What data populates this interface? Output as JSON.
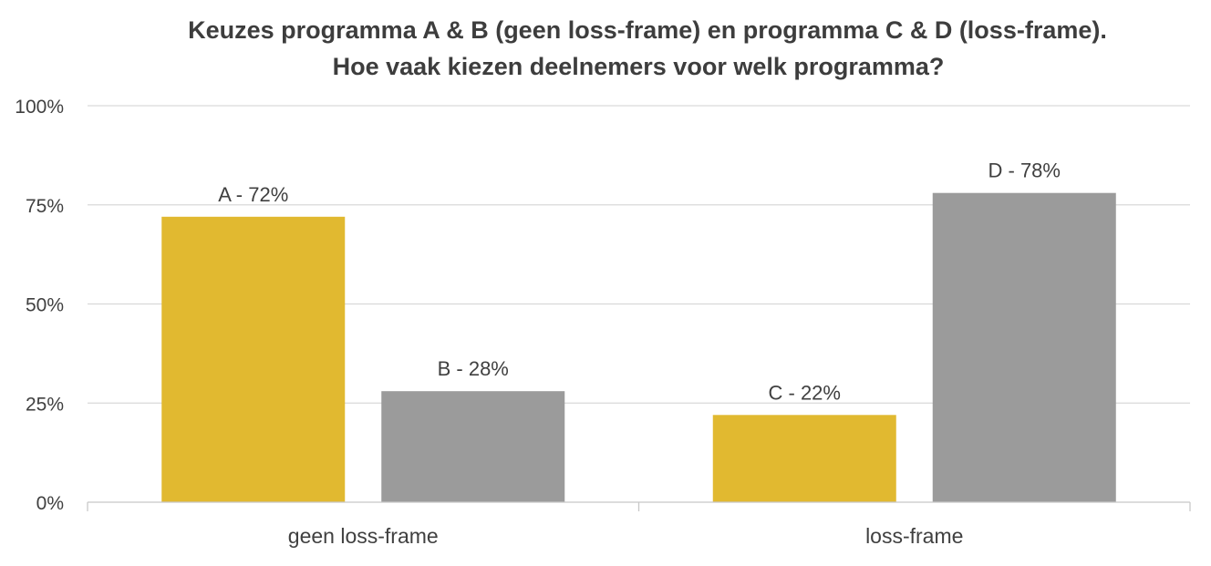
{
  "chart_data": {
    "type": "bar",
    "title": [
      "Keuzes programma A & B (geen loss-frame) en programma C & D (loss-frame).",
      "Hoe vaak kiezen deelnemers voor welk programma?"
    ],
    "categories": [
      "geen loss-frame",
      "loss-frame"
    ],
    "bars": [
      {
        "category": "geen loss-frame",
        "label": "A - 72%",
        "value": 72,
        "color": "#e1b930"
      },
      {
        "category": "geen loss-frame",
        "label": "B - 28%",
        "value": 28,
        "color": "#9b9b9b"
      },
      {
        "category": "loss-frame",
        "label": "C - 22%",
        "value": 22,
        "color": "#e1b930"
      },
      {
        "category": "loss-frame",
        "label": "D - 78%",
        "value": 78,
        "color": "#9b9b9b"
      }
    ],
    "yticks": [
      "0%",
      "25%",
      "50%",
      "75%",
      "100%"
    ],
    "ylim": [
      0,
      100
    ],
    "xlabel": "",
    "ylabel": "",
    "grid": true,
    "legend": "none"
  }
}
